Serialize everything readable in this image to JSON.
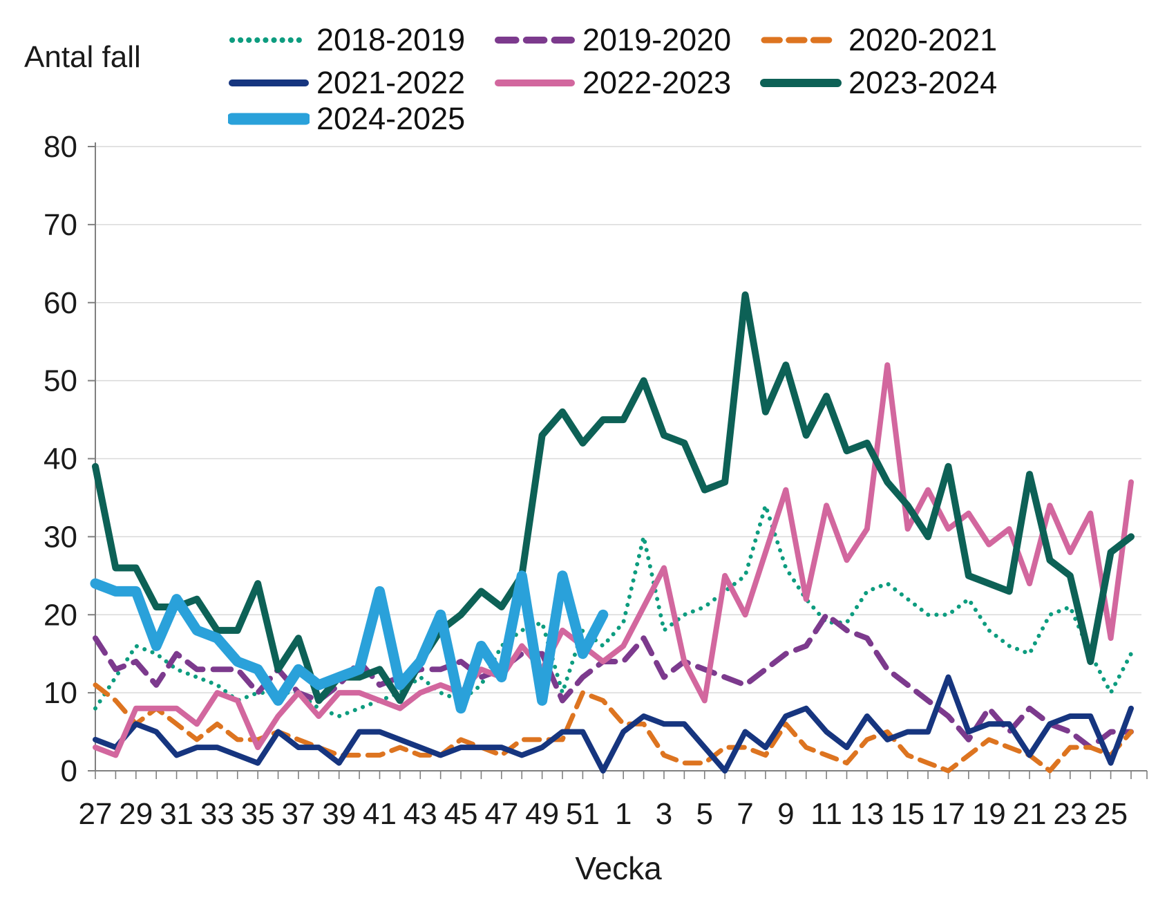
{
  "y_axis_title": "Antal fall",
  "x_axis_title": "Vecka",
  "chart_data": {
    "type": "line",
    "x_categories": [
      "27",
      "28",
      "29",
      "30",
      "31",
      "32",
      "33",
      "34",
      "35",
      "36",
      "37",
      "38",
      "39",
      "40",
      "41",
      "42",
      "43",
      "44",
      "45",
      "46",
      "47",
      "48",
      "49",
      "50",
      "51",
      "52",
      "1",
      "2",
      "3",
      "4",
      "5",
      "6",
      "7",
      "8",
      "9",
      "10",
      "11",
      "12",
      "13",
      "14",
      "15",
      "16",
      "17",
      "18",
      "19",
      "20",
      "21",
      "22",
      "23",
      "24",
      "25",
      "26"
    ],
    "x_tick_labels_shown": [
      "27",
      "29",
      "31",
      "33",
      "35",
      "37",
      "39",
      "41",
      "43",
      "45",
      "47",
      "49",
      "51",
      "1",
      "3",
      "5",
      "7",
      "9",
      "11",
      "13",
      "15",
      "17",
      "19",
      "21",
      "23",
      "25"
    ],
    "y_ticks": [
      0,
      10,
      20,
      30,
      40,
      50,
      60,
      70,
      80
    ],
    "ylim": [
      0,
      80
    ],
    "grid": "horizontal",
    "legend_position": "top",
    "axis_color": "#7f7f7f",
    "grid_color": "#d9d9d9",
    "text_color": "#1a1a1a",
    "series": [
      {
        "name": "2018-2019",
        "color": "#0d9c7f",
        "style": "dotted",
        "width": 6,
        "values": [
          8,
          12,
          16,
          15,
          13,
          12,
          11,
          9,
          10,
          10,
          10,
          8,
          7,
          8,
          9,
          10,
          12,
          10,
          9,
          11,
          16,
          18,
          19,
          10,
          18,
          16,
          19,
          30,
          18,
          20,
          21,
          23,
          25,
          34,
          26,
          22,
          19,
          19,
          23,
          24,
          22,
          20,
          20,
          22,
          18,
          16,
          15,
          20,
          21,
          15,
          10,
          15
        ]
      },
      {
        "name": "2019-2020",
        "color": "#7c3a8d",
        "style": "dashed",
        "width": 8,
        "values": [
          17,
          13,
          14,
          11,
          15,
          13,
          13,
          13,
          10,
          13,
          10,
          9,
          11,
          14,
          11,
          12,
          13,
          13,
          14,
          12,
          13,
          15,
          15,
          9,
          12,
          14,
          14,
          17,
          12,
          14,
          13,
          12,
          11,
          13,
          15,
          16,
          20,
          18,
          17,
          13,
          11,
          9,
          7,
          4,
          8,
          5,
          8,
          6,
          5,
          3,
          5,
          5
        ]
      },
      {
        "name": "2020-2021",
        "color": "#dd7420",
        "style": "dashed",
        "width": 7,
        "values": [
          11,
          9,
          6,
          8,
          6,
          4,
          6,
          4,
          4,
          5,
          4,
          3,
          2,
          2,
          2,
          3,
          2,
          2,
          4,
          3,
          2,
          4,
          4,
          4,
          10,
          9,
          6,
          6,
          2,
          1,
          1,
          3,
          3,
          2,
          6,
          3,
          2,
          1,
          4,
          5,
          2,
          1,
          0,
          2,
          4,
          3,
          2,
          0,
          3,
          3,
          2,
          5
        ]
      },
      {
        "name": "2021-2022",
        "color": "#16357f",
        "style": "solid",
        "width": 8,
        "values": [
          4,
          3,
          6,
          5,
          2,
          3,
          3,
          2,
          1,
          5,
          3,
          3,
          1,
          5,
          5,
          4,
          3,
          2,
          3,
          3,
          3,
          2,
          3,
          5,
          5,
          0,
          5,
          7,
          6,
          6,
          3,
          0,
          5,
          3,
          7,
          8,
          5,
          3,
          7,
          4,
          5,
          5,
          12,
          5,
          6,
          6,
          2,
          6,
          7,
          7,
          1,
          8
        ]
      },
      {
        "name": "2022-2023",
        "color": "#d2679e",
        "style": "solid",
        "width": 8,
        "values": [
          3,
          2,
          8,
          8,
          8,
          6,
          10,
          9,
          3,
          7,
          10,
          7,
          10,
          10,
          9,
          8,
          10,
          11,
          10,
          13,
          12,
          16,
          13,
          18,
          16,
          14,
          16,
          21,
          26,
          14,
          9,
          25,
          20,
          28,
          36,
          22,
          34,
          27,
          31,
          52,
          31,
          36,
          31,
          33,
          29,
          31,
          24,
          34,
          28,
          33,
          17,
          37
        ]
      },
      {
        "name": "2023-2024",
        "color": "#0d6156",
        "style": "solid",
        "width": 10,
        "values": [
          39,
          26,
          26,
          21,
          21,
          22,
          18,
          18,
          24,
          13,
          17,
          9,
          12,
          12,
          13,
          9,
          14,
          18,
          20,
          23,
          21,
          25,
          43,
          46,
          42,
          45,
          45,
          50,
          43,
          42,
          36,
          37,
          61,
          46,
          52,
          43,
          48,
          41,
          42,
          37,
          34,
          30,
          39,
          25,
          24,
          23,
          38,
          27,
          25,
          14,
          28,
          30
        ]
      },
      {
        "name": "2024-2025",
        "color": "#2aa1da",
        "style": "solid",
        "width": 15,
        "values": [
          24,
          23,
          23,
          16,
          22,
          18,
          17,
          14,
          13,
          9,
          13,
          11,
          12,
          13,
          23,
          11,
          14,
          20,
          8,
          16,
          12,
          25,
          9,
          25,
          15,
          20
        ]
      }
    ]
  }
}
